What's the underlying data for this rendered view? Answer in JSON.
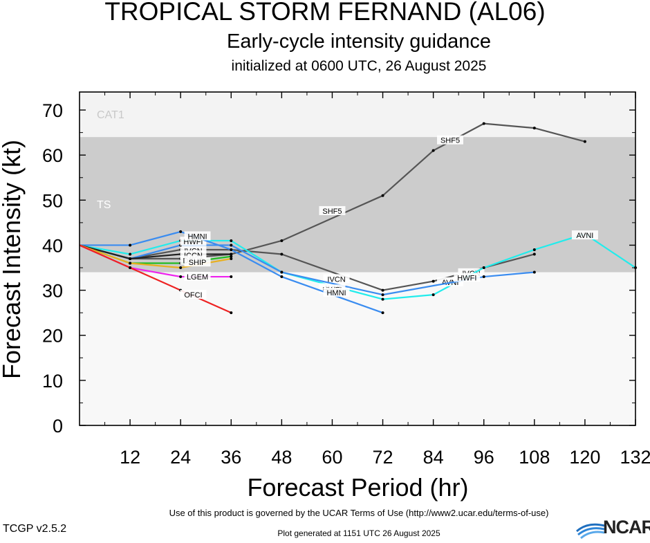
{
  "header": {
    "title": "TROPICAL STORM FERNAND (AL06)",
    "subtitle": "Early-cycle intensity guidance",
    "initialized": "initialized at 0600 UTC, 26 August 2025"
  },
  "footer": {
    "terms": "Use of this product is governed by the UCAR Terms of Use (http://www2.ucar.edu/terms-of-use)",
    "version": "TCGP v2.5.2",
    "generated": "Plot generated at 1151 UTC   26 August 2025",
    "logo_text": "NCAR"
  },
  "colors": {
    "cat1_band": "#f3f3f3",
    "ts_band": "#cccccc",
    "below_band": "#f8f8f8"
  },
  "chart_data": {
    "type": "line",
    "title": "TROPICAL STORM FERNAND (AL06)",
    "xlabel": "Forecast Period (hr)",
    "ylabel": "Forecast Intensity (kt)",
    "xlim": [
      0,
      132
    ],
    "ylim": [
      0,
      74
    ],
    "xticks": [
      12,
      24,
      36,
      48,
      60,
      72,
      84,
      96,
      108,
      120,
      132
    ],
    "yticks": [
      0,
      10,
      20,
      30,
      40,
      50,
      60,
      70
    ],
    "grid": false,
    "bands": [
      {
        "label": "CAT1",
        "from": 64,
        "to": 74,
        "color": "#f3f3f3"
      },
      {
        "label": "TS",
        "from": 34,
        "to": 64,
        "color": "#cccccc"
      }
    ],
    "series": [
      {
        "name": "SHF5",
        "color": "#555555",
        "label_at": [
          {
            "x": 60,
            "y": 47.6
          },
          {
            "x": 88,
            "y": 63.3
          }
        ],
        "points": [
          [
            0,
            40
          ],
          [
            12,
            37
          ],
          [
            24,
            37
          ],
          [
            36,
            38
          ],
          [
            48,
            41
          ],
          [
            72,
            51
          ],
          [
            84,
            61
          ],
          [
            96,
            67
          ],
          [
            108,
            66
          ],
          [
            120,
            63
          ]
        ]
      },
      {
        "name": "IVCN",
        "color": "#555555",
        "label_at": [
          {
            "x": 27,
            "y": 38.8
          },
          {
            "x": 61,
            "y": 32.5
          },
          {
            "x": 93,
            "y": 33.8
          }
        ],
        "points": [
          [
            0,
            40
          ],
          [
            12,
            37
          ],
          [
            24,
            39
          ],
          [
            36,
            39
          ],
          [
            48,
            38
          ],
          [
            72,
            30
          ],
          [
            84,
            32
          ],
          [
            96,
            35
          ],
          [
            108,
            38
          ]
        ]
      },
      {
        "name": "AVNI",
        "color": "#22ecec",
        "label_at": [
          {
            "x": 60,
            "y": 30.5
          },
          {
            "x": 88,
            "y": 31.8
          },
          {
            "x": 120,
            "y": 42.2
          }
        ],
        "points": [
          [
            0,
            40
          ],
          [
            12,
            38
          ],
          [
            24,
            41
          ],
          [
            36,
            41
          ],
          [
            48,
            34
          ],
          [
            72,
            28
          ],
          [
            84,
            29
          ],
          [
            96,
            35
          ],
          [
            108,
            39
          ],
          [
            120,
            42.5
          ],
          [
            132,
            35
          ]
        ]
      },
      {
        "name": "HWFI",
        "color": "#3a8cf0",
        "label_at": [
          {
            "x": 27,
            "y": 40.8
          },
          {
            "x": 60,
            "y": 30.2
          },
          {
            "x": 92,
            "y": 32.8
          }
        ],
        "points": [
          [
            0,
            40
          ],
          [
            12,
            37
          ],
          [
            24,
            40
          ],
          [
            36,
            40
          ],
          [
            48,
            34
          ],
          [
            72,
            29
          ],
          [
            96,
            33
          ],
          [
            108,
            34
          ]
        ]
      },
      {
        "name": "HMNI",
        "color": "#3a8cf0",
        "label_at": [
          {
            "x": 28,
            "y": 42
          },
          {
            "x": 61,
            "y": 29.5
          }
        ],
        "points": [
          [
            0,
            40
          ],
          [
            12,
            40
          ],
          [
            24,
            43
          ],
          [
            36,
            39
          ],
          [
            48,
            33
          ],
          [
            72,
            25
          ]
        ]
      },
      {
        "name": "ICCN",
        "color": "#222222",
        "label_at": [
          {
            "x": 27,
            "y": 37.8
          }
        ],
        "points": [
          [
            0,
            40
          ],
          [
            12,
            37
          ],
          [
            24,
            38
          ],
          [
            36,
            38
          ]
        ]
      },
      {
        "name": "DSHF",
        "color": "#22bb22",
        "label_at": [
          {
            "x": 27,
            "y": 36.6
          }
        ],
        "points": [
          [
            0,
            40
          ],
          [
            12,
            36
          ],
          [
            24,
            36
          ],
          [
            36,
            37.5
          ]
        ]
      },
      {
        "name": "SHIP",
        "color": "#e8b020",
        "label_at": [
          {
            "x": 28,
            "y": 36.2
          }
        ],
        "points": [
          [
            0,
            40
          ],
          [
            12,
            36
          ],
          [
            24,
            35
          ],
          [
            36,
            37
          ]
        ]
      },
      {
        "name": "LGEM",
        "color": "#ee22ee",
        "label_at": [
          {
            "x": 28,
            "y": 33
          }
        ],
        "points": [
          [
            0,
            40
          ],
          [
            12,
            35
          ],
          [
            24,
            33
          ],
          [
            36,
            33
          ]
        ]
      },
      {
        "name": "OFCI",
        "color": "#ee2222",
        "label_at": [
          {
            "x": 27,
            "y": 29
          }
        ],
        "points": [
          [
            0,
            40
          ],
          [
            12,
            35
          ],
          [
            24,
            30
          ],
          [
            36,
            25
          ]
        ]
      }
    ]
  }
}
